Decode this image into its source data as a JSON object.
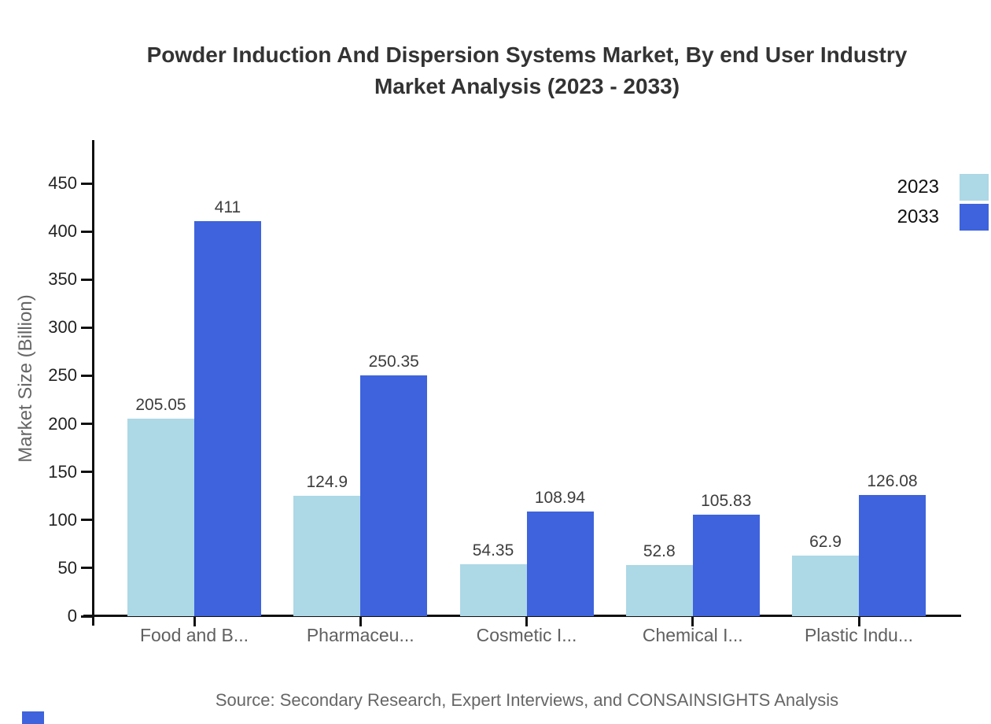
{
  "title": {
    "line1": "Powder Induction And Dispersion Systems Market, By end User Industry",
    "line2": "Market Analysis (2023 - 2033)"
  },
  "chart_data": {
    "type": "bar",
    "categories": [
      "Food and B...",
      "Pharmaceu...",
      "Cosmetic I...",
      "Chemical I...",
      "Plastic Indu..."
    ],
    "series": [
      {
        "name": "2023",
        "color": "#ADD8E6",
        "values": [
          205.05,
          124.9,
          54.35,
          52.8,
          62.9
        ]
      },
      {
        "name": "2033",
        "color": "#3E63DC",
        "values": [
          411,
          250.35,
          108.94,
          105.83,
          126.08
        ]
      }
    ],
    "title": "Powder Induction And Dispersion Systems Market, By end User Industry Market Analysis (2023 - 2033)",
    "xlabel": "",
    "ylabel": "Market Size (Billion)",
    "ylim": [
      0,
      493
    ],
    "yticks": [
      0,
      50,
      100,
      150,
      200,
      250,
      300,
      350,
      400,
      450
    ],
    "grid": false,
    "legend_position": "top-right",
    "value_labels": true
  },
  "source": "Source: Secondary Research, Expert Interviews, and CONSAINSIGHTS Analysis",
  "colors": {
    "axis": "#111111",
    "title_text": "#333333",
    "ytick_label": "#222222",
    "category_label": "#606060",
    "value_label": "#3d3d3d",
    "ylabel_text": "#666666",
    "source_text": "#666666",
    "series_2023": "#ADD8E6",
    "series_2033": "#3E63DC",
    "brand_mark": "#3E63DC"
  }
}
